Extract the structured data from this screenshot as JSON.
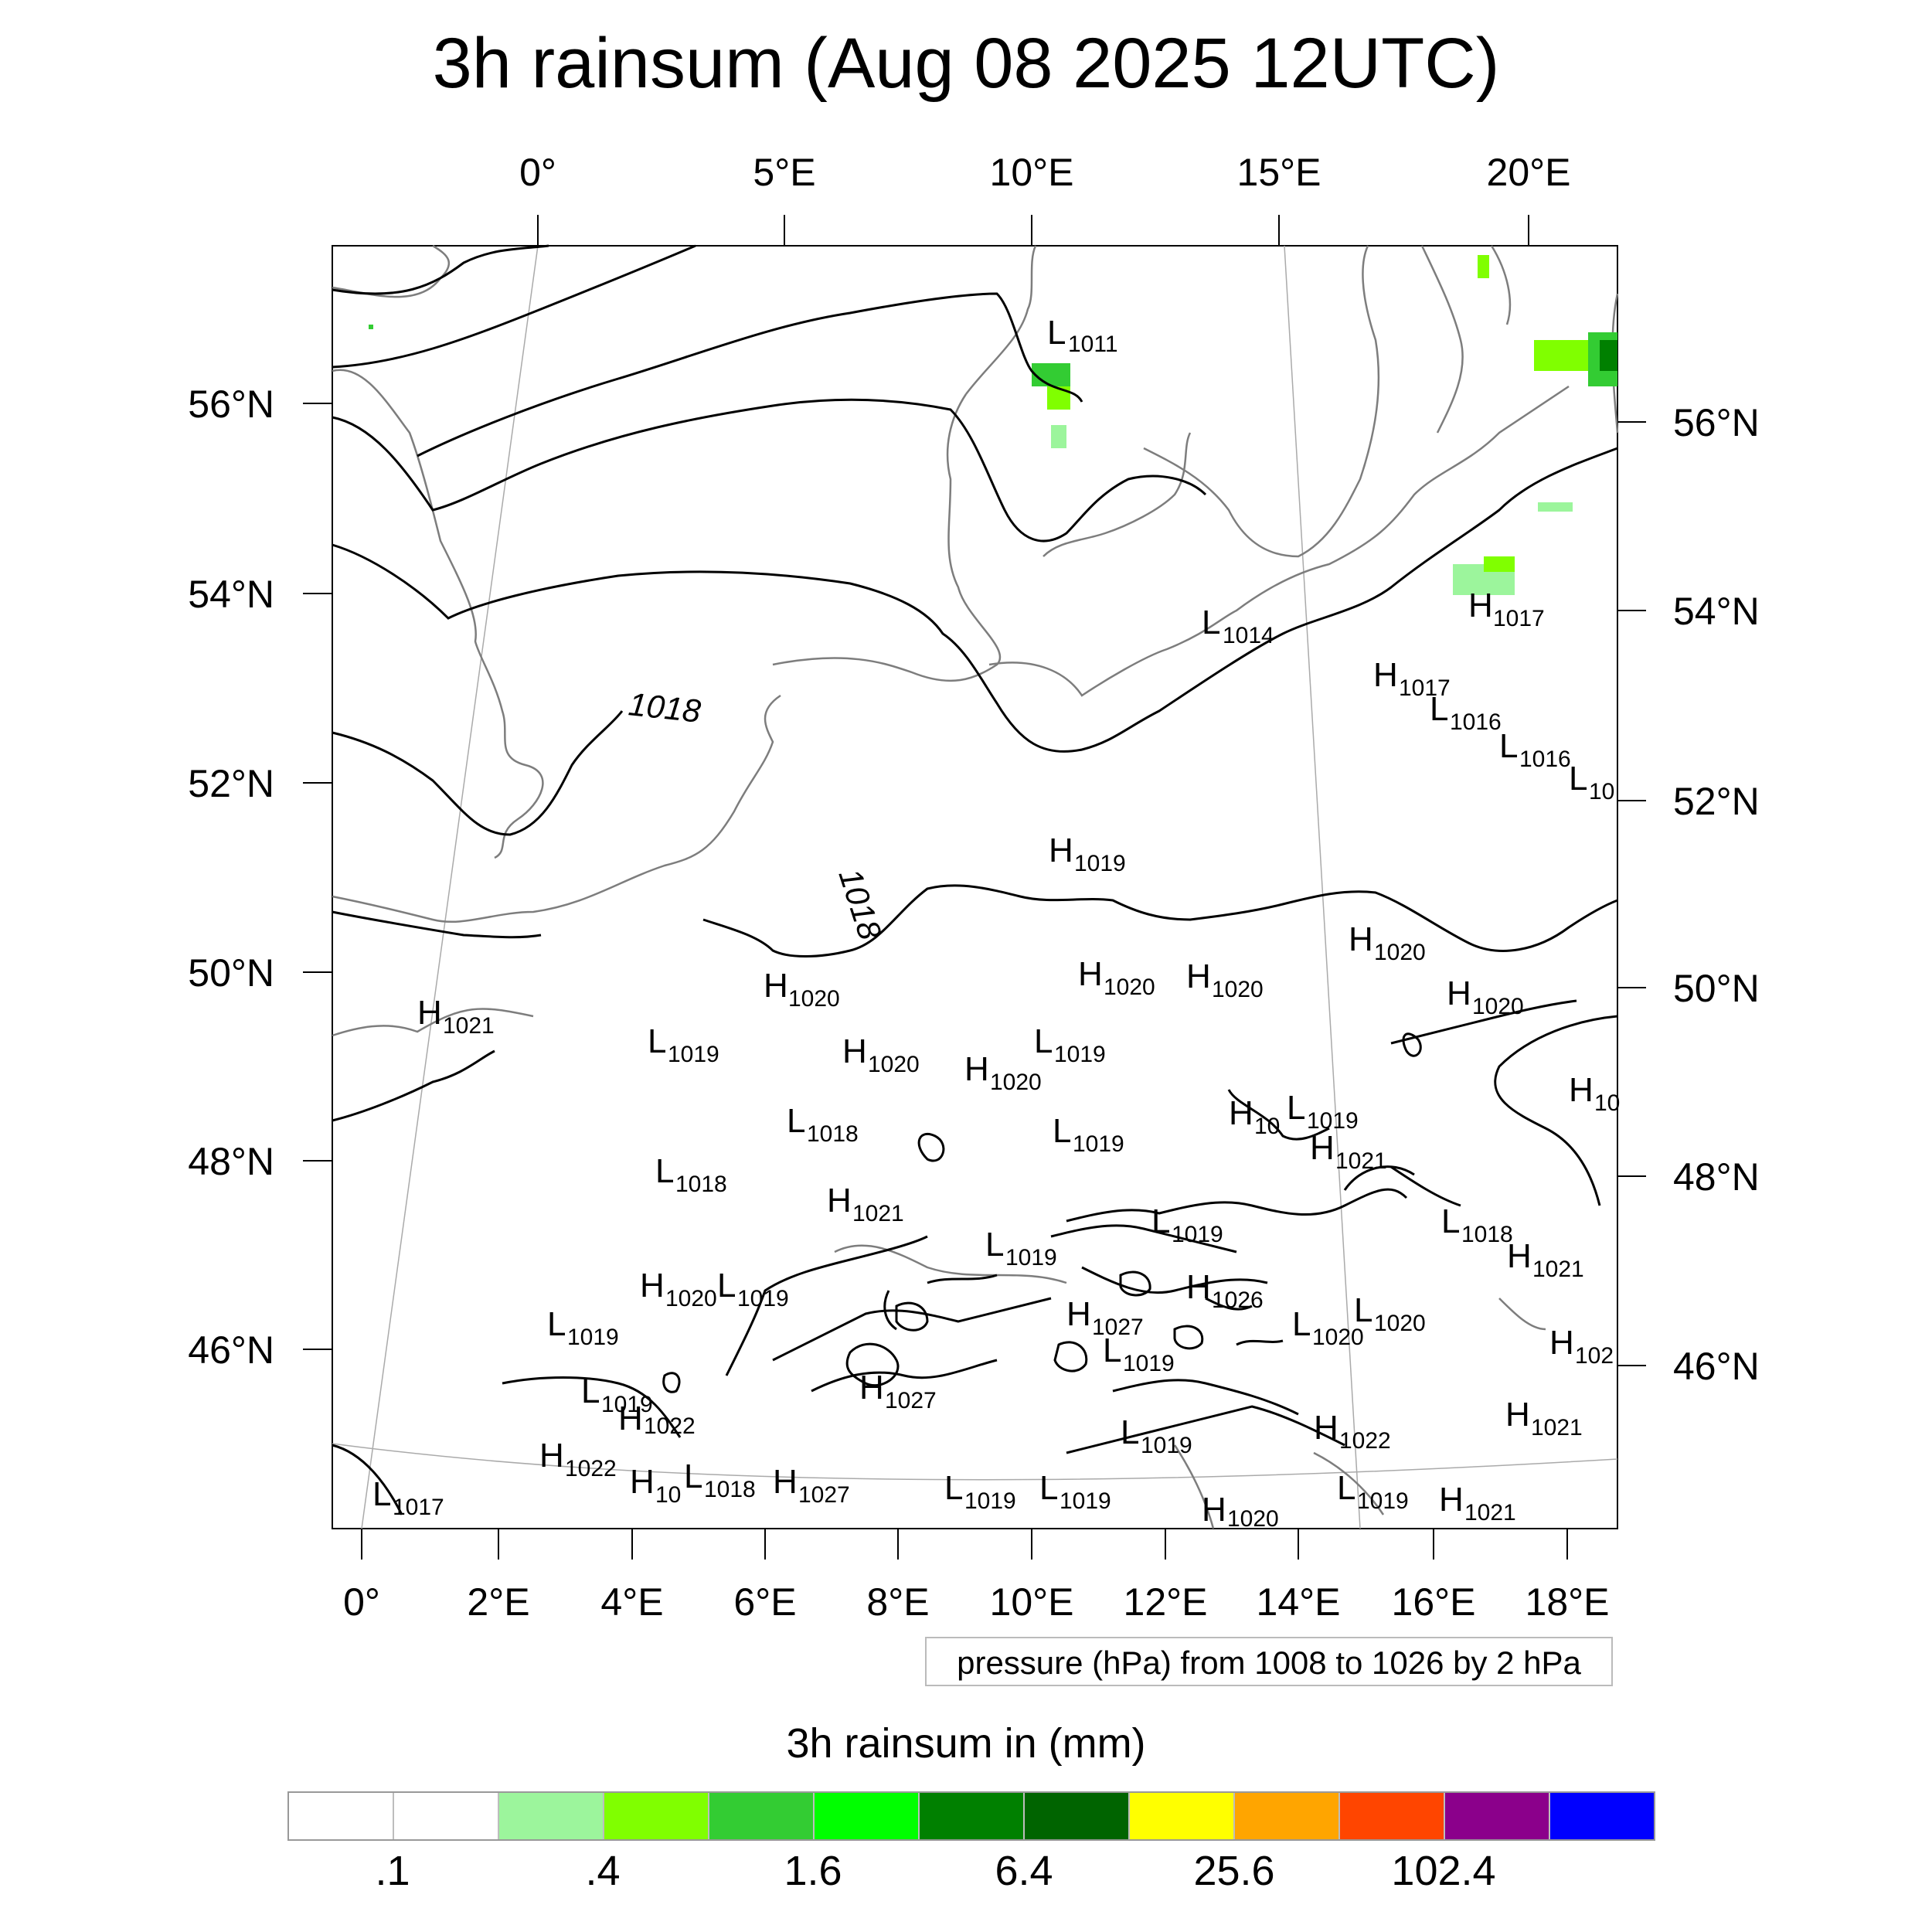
{
  "title": "3h rainsum (Aug 08 2025 12UTC)",
  "map": {
    "top_lon_labels": [
      "0°",
      "5°E",
      "10°E",
      "15°E",
      "20°E"
    ],
    "bottom_lon_labels": [
      "0°",
      "2°E",
      "4°E",
      "6°E",
      "8°E",
      "10°E",
      "12°E",
      "14°E",
      "16°E",
      "18°E"
    ],
    "left_lat_labels": [
      "56°N",
      "54°N",
      "52°N",
      "50°N",
      "48°N",
      "46°N"
    ],
    "right_lat_labels": [
      "56°N",
      "54°N",
      "52°N",
      "50°N",
      "48°N",
      "46°N"
    ],
    "contour_labels": [
      "1018",
      "1018"
    ],
    "pressure_centers": [
      {
        "type": "L",
        "value": "1011"
      },
      {
        "type": "L",
        "value": "1014"
      },
      {
        "type": "H",
        "value": "1017"
      },
      {
        "type": "H",
        "value": "1017"
      },
      {
        "type": "L",
        "value": "1016"
      },
      {
        "type": "L",
        "value": "1016"
      },
      {
        "type": "L",
        "value": "10"
      },
      {
        "type": "H",
        "value": "1019"
      },
      {
        "type": "H",
        "value": "1020"
      },
      {
        "type": "H",
        "value": "1020"
      },
      {
        "type": "H",
        "value": "1020"
      },
      {
        "type": "H",
        "value": "1020"
      },
      {
        "type": "H",
        "value": "1021"
      },
      {
        "type": "H",
        "value": "1020"
      },
      {
        "type": "L",
        "value": "1019"
      },
      {
        "type": "H",
        "value": "1020"
      },
      {
        "type": "L",
        "value": "1019"
      },
      {
        "type": "H",
        "value": "1020"
      },
      {
        "type": "H",
        "value": "10"
      },
      {
        "type": "L",
        "value": "1019"
      },
      {
        "type": "H",
        "value": "10"
      },
      {
        "type": "L",
        "value": "1018"
      },
      {
        "type": "L",
        "value": "1019"
      },
      {
        "type": "H",
        "value": "1021"
      },
      {
        "type": "L",
        "value": "1018"
      },
      {
        "type": "H",
        "value": "1021"
      },
      {
        "type": "L",
        "value": "1019"
      },
      {
        "type": "L",
        "value": "1018"
      },
      {
        "type": "L",
        "value": "1019"
      },
      {
        "type": "H",
        "value": "1021"
      },
      {
        "type": "H",
        "value": "1020"
      },
      {
        "type": "L",
        "value": "1019"
      },
      {
        "type": "H",
        "value": "1026"
      },
      {
        "type": "H",
        "value": "1027"
      },
      {
        "type": "L",
        "value": "1020"
      },
      {
        "type": "L",
        "value": "1020"
      },
      {
        "type": "L",
        "value": "1019"
      },
      {
        "type": "L",
        "value": "1019"
      },
      {
        "type": "H",
        "value": "102"
      },
      {
        "type": "L",
        "value": "1019"
      },
      {
        "type": "H",
        "value": "1027"
      },
      {
        "type": "H",
        "value": "1021"
      },
      {
        "type": "L",
        "value": "1019"
      },
      {
        "type": "H",
        "value": "1022"
      },
      {
        "type": "H",
        "value": "1022"
      },
      {
        "type": "H",
        "value": "1022"
      },
      {
        "type": "H",
        "value": "10"
      },
      {
        "type": "L",
        "value": "1018"
      },
      {
        "type": "H",
        "value": "1027"
      },
      {
        "type": "L",
        "value": "1019"
      },
      {
        "type": "L",
        "value": "1019"
      },
      {
        "type": "H",
        "value": "1020"
      },
      {
        "type": "L",
        "value": "1019"
      },
      {
        "type": "H",
        "value": "1021"
      },
      {
        "type": "L",
        "value": "1017"
      }
    ]
  },
  "info_box": "pressure (hPa) from 1008 to 1026 by 2 hPa",
  "colorbar": {
    "title": "3h rainsum in (mm)",
    "labels": [
      ".1",
      ".4",
      "1.6",
      "6.4",
      "25.6",
      "102.4"
    ],
    "colors": [
      "#ffffff",
      "#ffffff",
      "#9cf59c",
      "#80ff00",
      "#33cc33",
      "#00ff00",
      "#008000",
      "#006400",
      "#ffff00",
      "#ffa500",
      "#ff4500",
      "#8b008b",
      "#0000ff"
    ]
  }
}
